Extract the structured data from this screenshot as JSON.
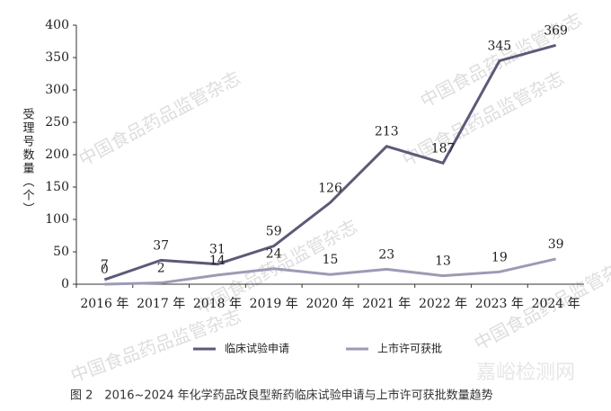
{
  "chart_data": {
    "type": "line",
    "y_label": "受理号数量（个）",
    "caption": "图 2　2016~2024 年化学药品改良型新药临床试验申请与上市许可获批数量趋势",
    "categories": [
      "2016 年",
      "2017 年",
      "2018 年",
      "2019 年",
      "2020 年",
      "2021 年",
      "2022 年",
      "2023 年",
      "2024 年"
    ],
    "series": [
      {
        "name": "临床试验申请",
        "color": "#5b5a78",
        "values": [
          7,
          37,
          31,
          59,
          126,
          213,
          187,
          345,
          369
        ]
      },
      {
        "name": "上市许可获批",
        "color": "#9b9bb5",
        "values": [
          0,
          2,
          14,
          24,
          15,
          23,
          13,
          19,
          39
        ]
      }
    ],
    "ylim": [
      0,
      400
    ],
    "yticks": [
      0,
      50,
      100,
      150,
      200,
      250,
      300,
      350,
      400
    ],
    "grid": false,
    "watermarks": [
      "中国食品药品监管杂志",
      "中国食品药品监管杂志",
      "中国食品药品监管杂志",
      "中国食品药品监管杂志",
      "中国食品药品监管杂志",
      "中国食品药品监管杂志",
      "嘉峪检测网"
    ]
  }
}
